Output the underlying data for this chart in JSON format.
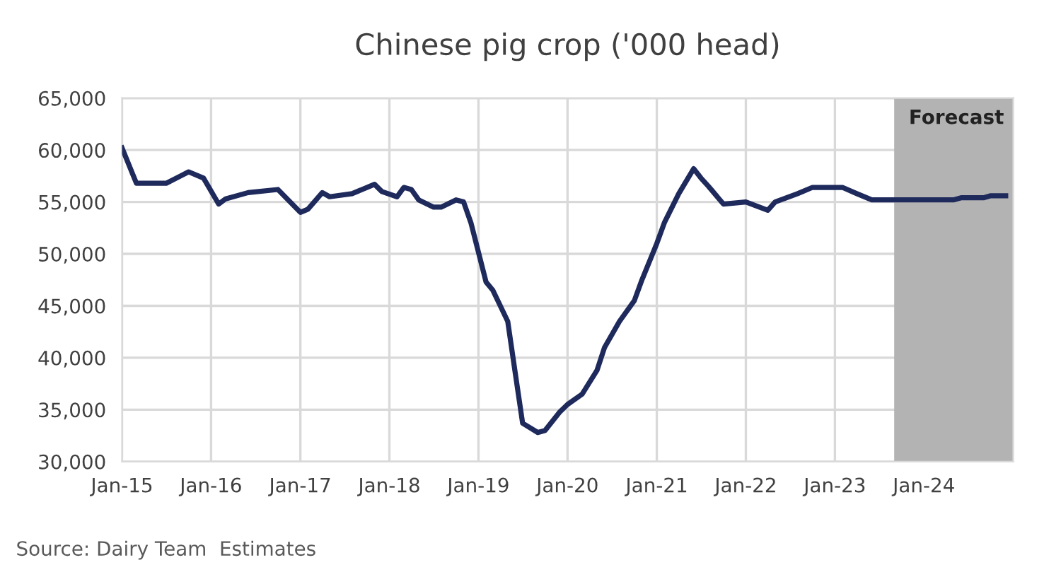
{
  "chart_data": {
    "type": "line",
    "title": "Chinese pig crop ('000 head)",
    "x": [
      "2015-01",
      "2015-03",
      "2015-07",
      "2015-10",
      "2015-12",
      "2016-02",
      "2016-03",
      "2016-06",
      "2016-10",
      "2017-01",
      "2017-02",
      "2017-04",
      "2017-05",
      "2017-08",
      "2017-11",
      "2017-12",
      "2018-02",
      "2018-03",
      "2018-04",
      "2018-05",
      "2018-07",
      "2018-08",
      "2018-10",
      "2018-11",
      "2018-12",
      "2019-02",
      "2019-03",
      "2019-05",
      "2019-06",
      "2019-07",
      "2019-09",
      "2019-10",
      "2019-12",
      "2020-01",
      "2020-03",
      "2020-05",
      "2020-06",
      "2020-08",
      "2020-10",
      "2020-11",
      "2021-01",
      "2021-02",
      "2021-04",
      "2021-06",
      "2021-07",
      "2021-08",
      "2021-10",
      "2022-01",
      "2022-04",
      "2022-05",
      "2022-08",
      "2022-10",
      "2023-02",
      "2023-04",
      "2023-06",
      "2023-08",
      "2024-05",
      "2024-06",
      "2024-09",
      "2024-10",
      "2024-12"
    ],
    "series": [
      {
        "color": "#1f2a5c",
        "values": [
          60200,
          56800,
          56800,
          57900,
          57300,
          54800,
          55300,
          55900,
          56200,
          54000,
          54300,
          55900,
          55500,
          55800,
          56700,
          56000,
          55500,
          56400,
          56200,
          55200,
          54500,
          54500,
          55200,
          55000,
          53000,
          47300,
          46500,
          43500,
          38500,
          33700,
          32800,
          33000,
          34800,
          35500,
          36500,
          38800,
          41000,
          43500,
          45500,
          47500,
          51000,
          53000,
          55800,
          58200,
          57300,
          56500,
          54800,
          55000,
          54200,
          55000,
          55800,
          56400,
          56400,
          55800,
          55200,
          55200,
          55200,
          55400,
          55400,
          55600,
          55600
        ]
      }
    ],
    "xlim": [
      "2015-01",
      "2025-01"
    ],
    "xticks": [
      {
        "value": "2015-01",
        "label": "Jan-15"
      },
      {
        "value": "2016-01",
        "label": "Jan-16"
      },
      {
        "value": "2017-01",
        "label": "Jan-17"
      },
      {
        "value": "2018-01",
        "label": "Jan-18"
      },
      {
        "value": "2019-01",
        "label": "Jan-19"
      },
      {
        "value": "2020-01",
        "label": "Jan-20"
      },
      {
        "value": "2021-01",
        "label": "Jan-21"
      },
      {
        "value": "2022-01",
        "label": "Jan-22"
      },
      {
        "value": "2023-01",
        "label": "Jan-23"
      },
      {
        "value": "2024-01",
        "label": "Jan-24"
      }
    ],
    "ylim": [
      30000,
      65000
    ],
    "yticks": [
      {
        "value": 30000,
        "label": "30,000"
      },
      {
        "value": 35000,
        "label": "35,000"
      },
      {
        "value": 40000,
        "label": "40,000"
      },
      {
        "value": 45000,
        "label": "45,000"
      },
      {
        "value": 50000,
        "label": "50,000"
      },
      {
        "value": 55000,
        "label": "55,000"
      },
      {
        "value": 60000,
        "label": "60,000"
      },
      {
        "value": 65000,
        "label": "65,000"
      }
    ],
    "bands": [
      {
        "axis": "x",
        "from": "2023-09",
        "to": "2025-01",
        "label": "Forecast",
        "color": "#b3b3b3"
      }
    ],
    "grid": true,
    "marker": "none",
    "line_style": "solid",
    "annotations": [
      "Source: Dairy Team  Estimates"
    ]
  }
}
